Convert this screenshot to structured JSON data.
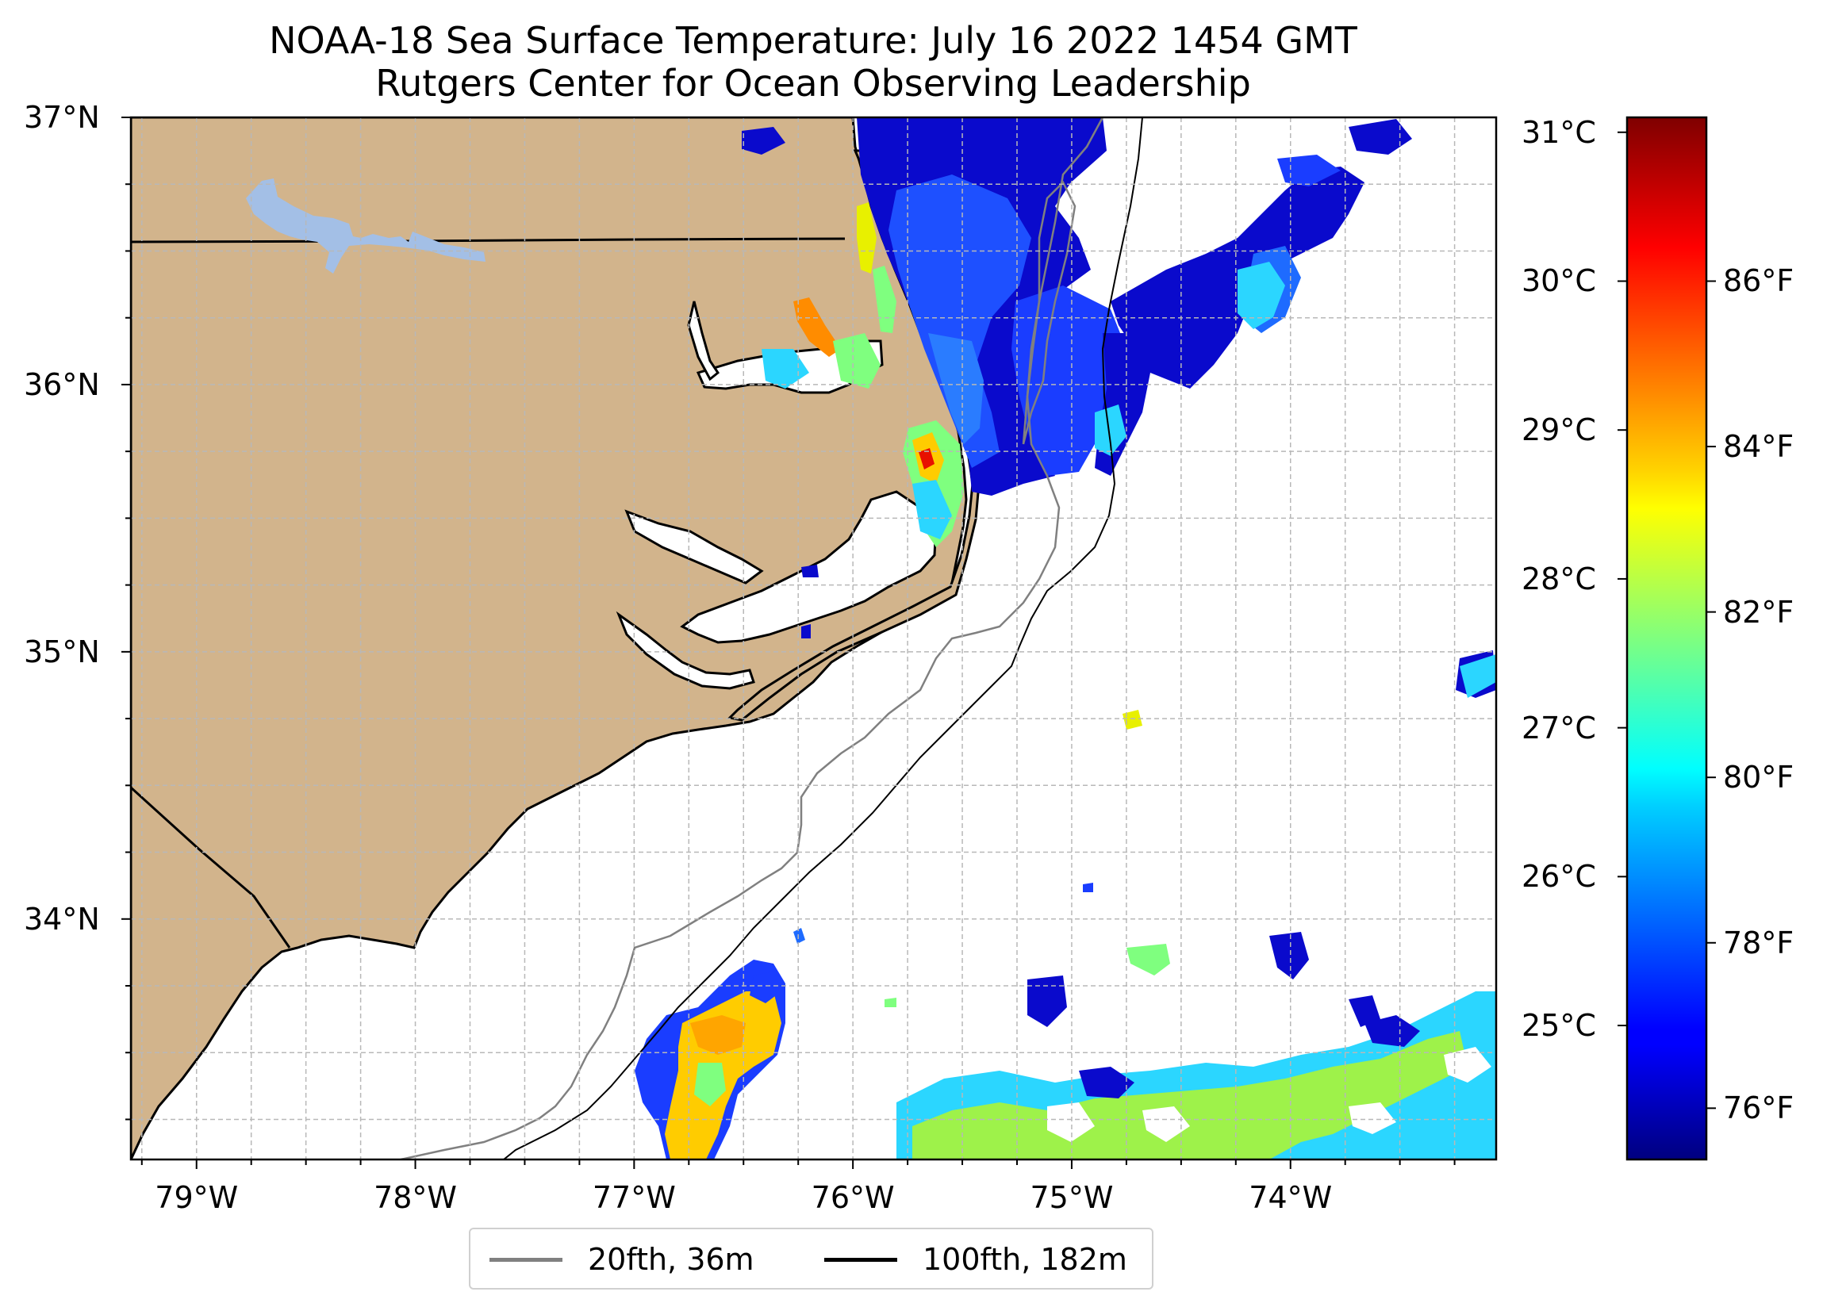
{
  "title": {
    "line1": "NOAA-18 Sea Surface Temperature: July 16 2022 1454 GMT",
    "line2": "Rutgers Center for Ocean Observing Leadership"
  },
  "map": {
    "lon_range": [
      -79.3,
      -73.06
    ],
    "lat_range": [
      33.1,
      37.0
    ],
    "lat_ticks": [
      {
        "value": 37,
        "label": "37°N"
      },
      {
        "value": 36,
        "label": "36°N"
      },
      {
        "value": 35,
        "label": "35°N"
      },
      {
        "value": 34,
        "label": "34°N"
      }
    ],
    "lon_ticks": [
      {
        "value": -79,
        "label": "79°W"
      },
      {
        "value": -78,
        "label": "78°W"
      },
      {
        "value": -77,
        "label": "77°W"
      },
      {
        "value": -76,
        "label": "76°W"
      },
      {
        "value": -75,
        "label": "75°W"
      },
      {
        "value": -74,
        "label": "74°W"
      }
    ],
    "grid": "dashed light gray every 0.25°",
    "colors": {
      "land": "#d2b48c",
      "water_body": "#a3bfe6",
      "isobath_20fth": "#808080",
      "isobath_100fth": "#000000"
    }
  },
  "colorbar": {
    "colormap": "jet",
    "celsius_ticks": [
      {
        "value": 31,
        "label": "31°C"
      },
      {
        "value": 30,
        "label": "30°C"
      },
      {
        "value": 29,
        "label": "29°C"
      },
      {
        "value": 28,
        "label": "28°C"
      },
      {
        "value": 27,
        "label": "27°C"
      },
      {
        "value": 26,
        "label": "26°C"
      },
      {
        "value": 25,
        "label": "25°C"
      }
    ],
    "fahrenheit_ticks": [
      {
        "value": 86,
        "label": "86°F"
      },
      {
        "value": 84,
        "label": "84°F"
      },
      {
        "value": 82,
        "label": "82°F"
      },
      {
        "value": 80,
        "label": "80°F"
      },
      {
        "value": 78,
        "label": "78°F"
      },
      {
        "value": 76,
        "label": "76°F"
      }
    ],
    "range_celsius": [
      24.1,
      31.1
    ]
  },
  "legend": {
    "items": [
      {
        "label": "20fth, 36m",
        "color": "#808080"
      },
      {
        "label": "100fth, 182m",
        "color": "#000000"
      }
    ]
  }
}
